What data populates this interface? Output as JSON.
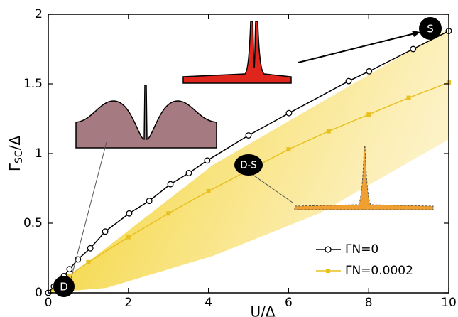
{
  "chart_data": {
    "type": "line",
    "xlabel": "U/Δ",
    "ylabel": {
      "symbol": "Γ",
      "subscript": "SC",
      "rest": "/Δ"
    },
    "xlim": [
      0,
      10
    ],
    "ylim": [
      0,
      2
    ],
    "xticks": [
      0,
      2,
      4,
      6,
      8,
      10
    ],
    "yticks": [
      0,
      0.5,
      1,
      1.5,
      2
    ],
    "legend": "lower right",
    "annotations": [
      "S",
      "D-S",
      "D"
    ],
    "series": [
      {
        "name": "ΓN=0",
        "color": "#000000",
        "marker": "circle",
        "x": [
          0,
          0.14,
          0.27,
          0.39,
          0.53,
          0.74,
          1.05,
          1.42,
          2.02,
          2.52,
          3.05,
          3.51,
          3.97,
          5.0,
          6.01,
          7.5,
          8.01,
          9.11,
          10.0
        ],
        "values": [
          0,
          0.046,
          0.08,
          0.12,
          0.17,
          0.24,
          0.32,
          0.44,
          0.57,
          0.66,
          0.78,
          0.86,
          0.95,
          1.13,
          1.29,
          1.52,
          1.59,
          1.75,
          1.88
        ]
      },
      {
        "name": "ΓN=0.0002",
        "color": "#e8c020",
        "marker": "square",
        "x": [
          0,
          0.5,
          1,
          2,
          3,
          4,
          5,
          6,
          7,
          8,
          9,
          10
        ],
        "values": [
          0,
          0.12,
          0.22,
          0.4,
          0.57,
          0.73,
          0.88,
          1.03,
          1.16,
          1.28,
          1.4,
          1.51
        ]
      }
    ]
  }
}
